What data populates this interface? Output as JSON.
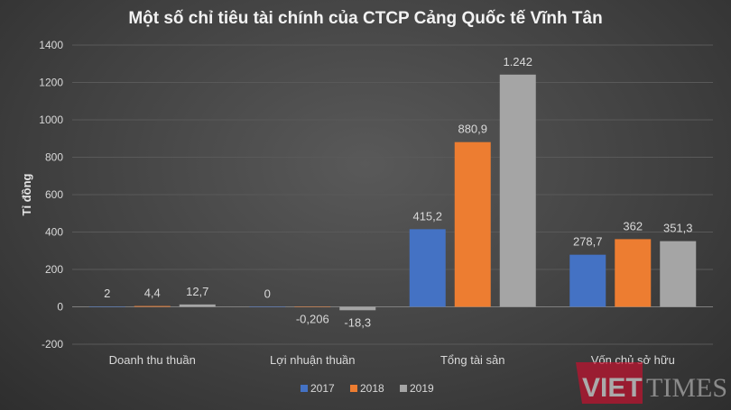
{
  "chart_data": {
    "type": "bar",
    "title": "Một số chỉ tiêu tài chính của CTCP Cảng Quốc tế Vĩnh Tân",
    "xlabel": "",
    "ylabel": "Tỉ đồng",
    "ylim": [
      -200,
      1400
    ],
    "yticks": [
      -200,
      0,
      200,
      400,
      600,
      800,
      1000,
      1200,
      1400
    ],
    "grid": true,
    "legend_position": "bottom",
    "categories": [
      "Doanh thu thuần",
      "Lợi nhuận thuần",
      "Tổng tài sản",
      "Vốn chủ sở hữu"
    ],
    "series": [
      {
        "name": "2017",
        "color": "#4472c4",
        "values": [
          2,
          0,
          415.2,
          278.7
        ],
        "labels": [
          "2",
          "0",
          "415,2",
          "278,7"
        ]
      },
      {
        "name": "2018",
        "color": "#ed7d31",
        "values": [
          4.4,
          -0.206,
          880.9,
          362
        ],
        "labels": [
          "4,4",
          "-0,206",
          "880,9",
          "362"
        ]
      },
      {
        "name": "2019",
        "color": "#a5a5a5",
        "values": [
          12.7,
          -18.3,
          1242,
          351.3
        ],
        "labels": [
          "12,7",
          "-18,3",
          "1.242",
          "351,3"
        ]
      }
    ]
  },
  "watermark": "VIETTIMES"
}
